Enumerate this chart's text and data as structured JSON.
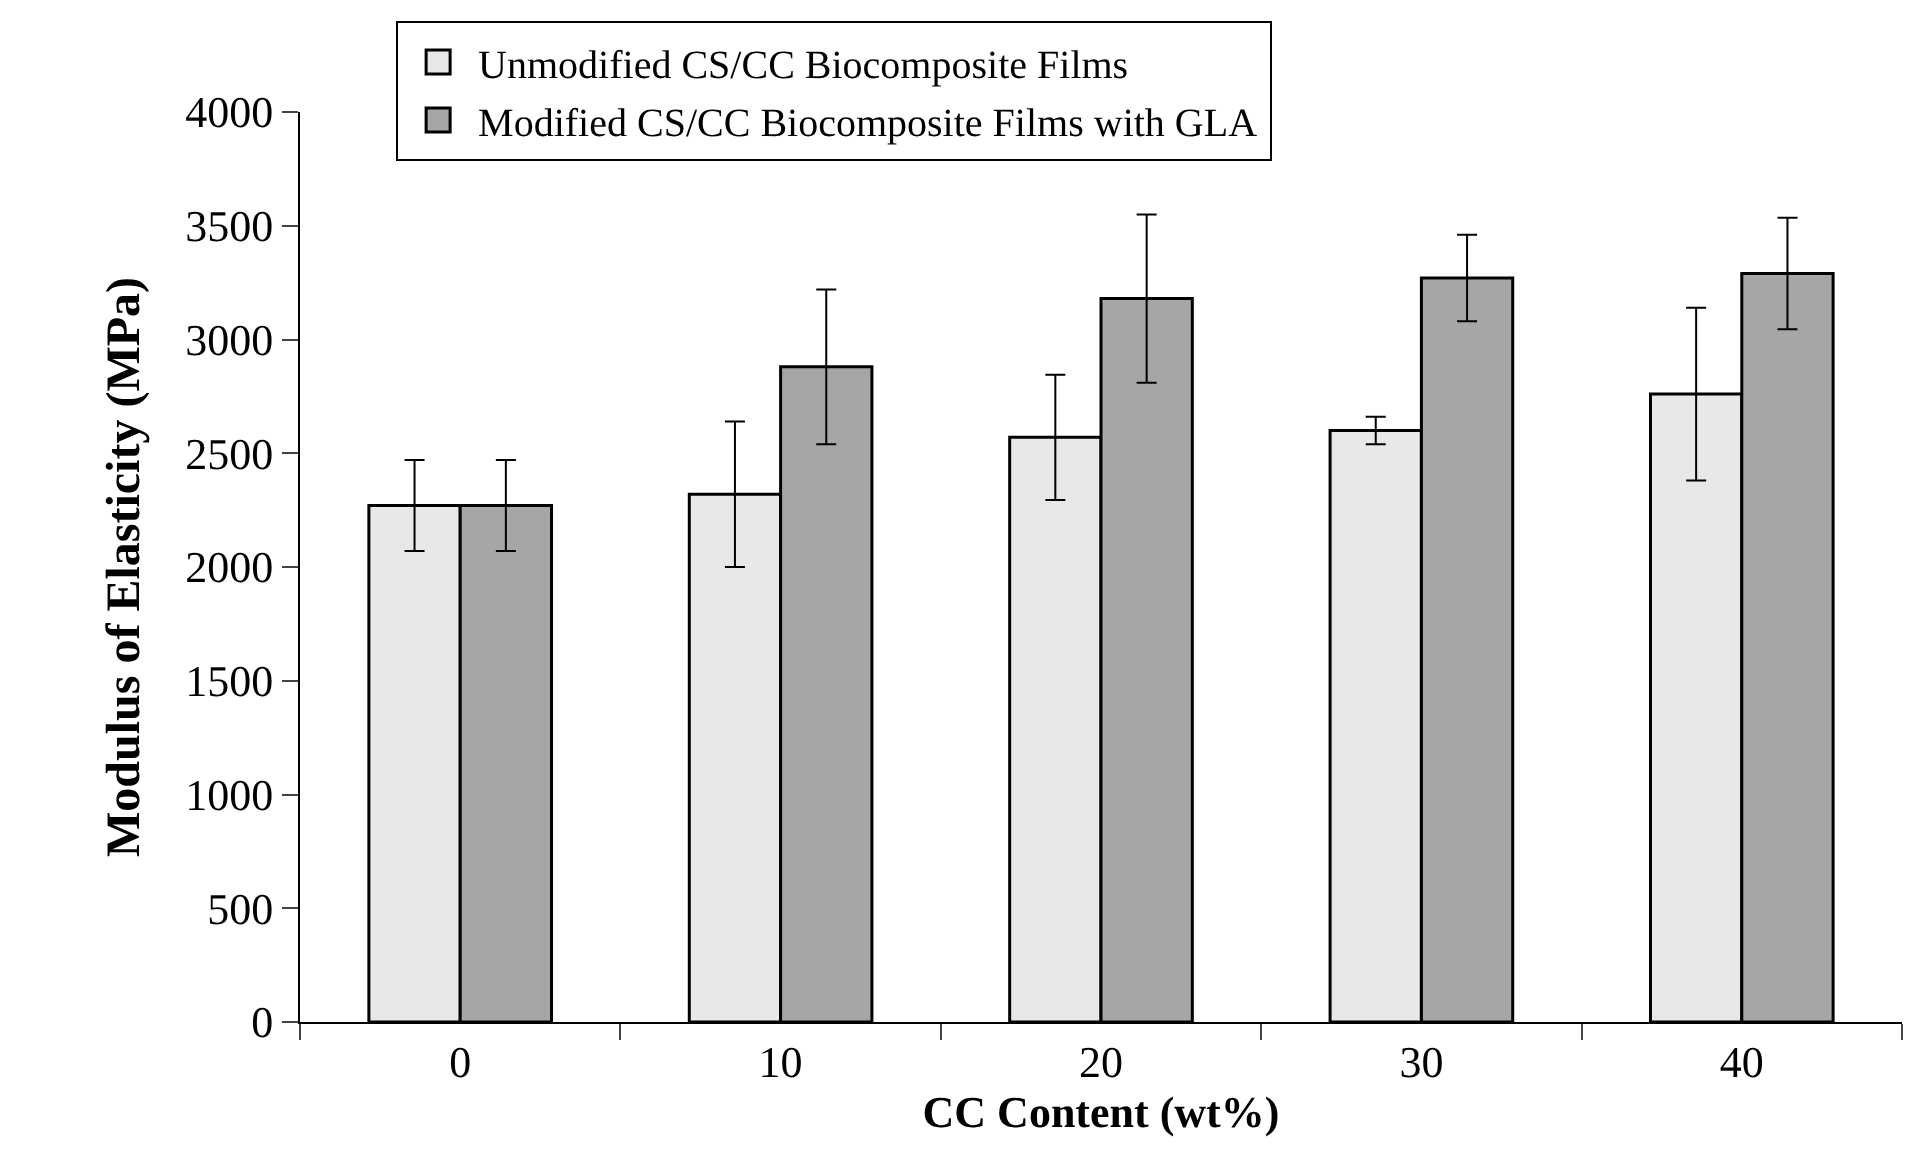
{
  "chart_data": {
    "type": "bar",
    "xlabel": "CC Content (wt%)",
    "ylabel": "Modulus of Elasticity (MPa)",
    "categories": [
      "0",
      "10",
      "20",
      "30",
      "40"
    ],
    "series": [
      {
        "name": "Unmodified CS/CC Biocomposite Films",
        "color": "#e8e8e8",
        "values": [
          2270,
          2320,
          2570,
          2600,
          2760
        ],
        "errors": [
          200,
          320,
          275,
          60,
          380
        ]
      },
      {
        "name": "Modified CS/CC Biocomposite Films with GLA",
        "color": "#a6a6a6",
        "values": [
          2270,
          2880,
          3180,
          3270,
          3290
        ],
        "errors": [
          200,
          340,
          370,
          190,
          245
        ]
      }
    ],
    "ylim": [
      0,
      4000
    ],
    "yticks": [
      0,
      500,
      1000,
      1500,
      2000,
      2500,
      3000,
      3500,
      4000
    ],
    "grid": false,
    "legend": "top"
  }
}
